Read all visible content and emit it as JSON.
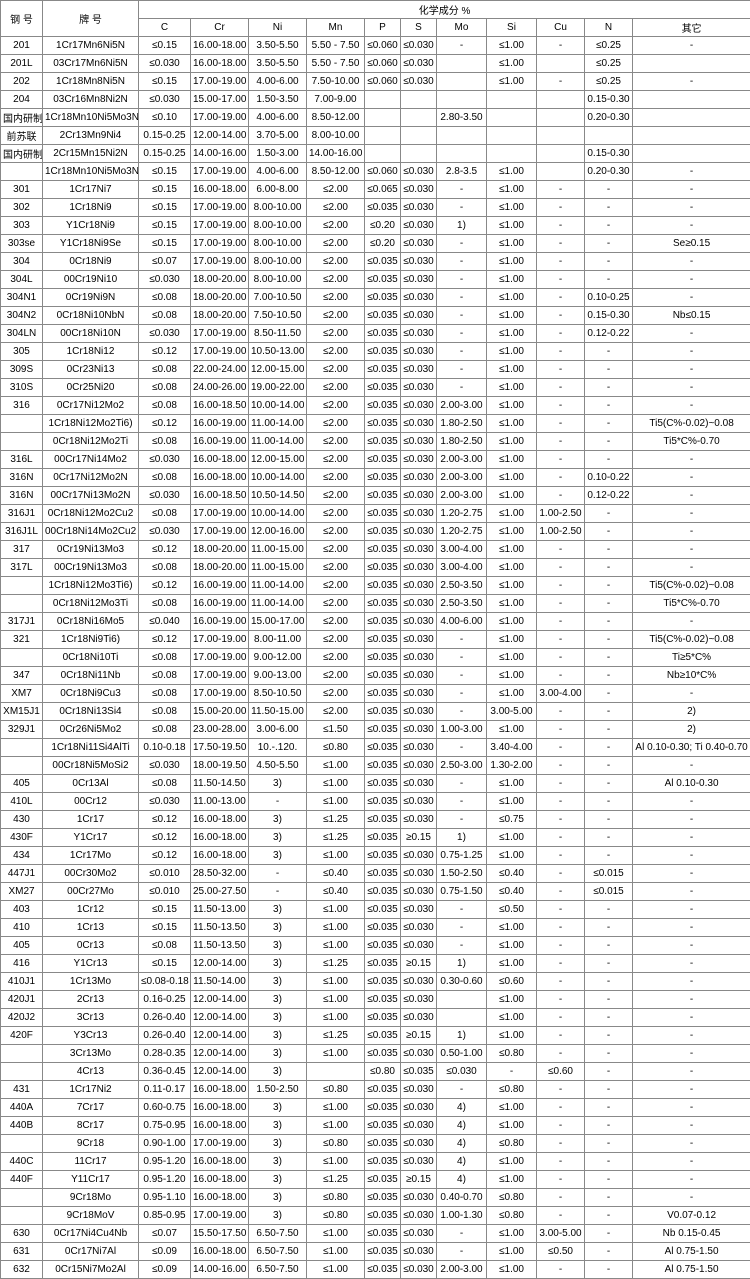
{
  "headers": {
    "steel": "钢 号",
    "grade": "牌 号",
    "composition": "化学成分 %",
    "cols": [
      "C",
      "Cr",
      "Ni",
      "Mn",
      "P",
      "S",
      "Mo",
      "Si",
      "Cu",
      "N",
      "其它"
    ]
  },
  "rows": [
    [
      "201",
      "1Cr17Mn6Ni5N",
      "≤0.15",
      "16.00-18.00",
      "3.50-5.50",
      "5.50 - 7.50",
      "≤0.060",
      "≤0.030",
      "-",
      "≤1.00",
      "-",
      "≤0.25",
      "-"
    ],
    [
      "201L",
      "03Cr17Mn6Ni5N",
      "≤0.030",
      "16.00-18.00",
      "3.50-5.50",
      "5.50 - 7.50",
      "≤0.060",
      "≤0.030",
      "",
      "≤1.00",
      "",
      "≤0.25",
      ""
    ],
    [
      "202",
      "1Cr18Mn8Ni5N",
      "≤0.15",
      "17.00-19.00",
      "4.00-6.00",
      "7.50-10.00",
      "≤0.060",
      "≤0.030",
      "",
      "≤1.00",
      "-",
      "≤0.25",
      "-"
    ],
    [
      "204",
      "03Cr16Mn8Ni2N",
      "≤0.030",
      "15.00-17.00",
      "1.50-3.50",
      "7.00-9.00",
      "",
      "",
      "",
      "",
      "",
      "0.15-0.30",
      ""
    ],
    [
      "国内研制",
      "1Cr18Mn10Ni5Mo3N",
      "≤0.10",
      "17.00-19.00",
      "4.00-6.00",
      "8.50-12.00",
      "",
      "",
      "2.80-3.50",
      "",
      "",
      "0.20-0.30",
      ""
    ],
    [
      "前苏联",
      "2Cr13Mn9Ni4",
      "0.15-0.25",
      "12.00-14.00",
      "3.70-5.00",
      "8.00-10.00",
      "",
      "",
      "",
      "",
      "",
      "",
      ""
    ],
    [
      "国内研制",
      "2Cr15Mn15Ni2N",
      "0.15-0.25",
      "14.00-16.00",
      "1.50-3.00",
      "14.00-16.00",
      "",
      "",
      "",
      "",
      "",
      "0.15-0.30",
      ""
    ],
    [
      "",
      "1Cr18Mn10Ni5Mo3N",
      "≤0.15",
      "17.00-19.00",
      "4.00-6.00",
      "8.50-12.00",
      "≤0.060",
      "≤0.030",
      "2.8-3.5",
      "≤1.00",
      "",
      "0.20-0.30",
      "-"
    ],
    [
      "301",
      "1Cr17Ni7",
      "≤0.15",
      "16.00-18.00",
      "6.00-8.00",
      "≤2.00",
      "≤0.065",
      "≤0.030",
      "-",
      "≤1.00",
      "-",
      "-",
      "-"
    ],
    [
      "302",
      "1Cr18Ni9",
      "≤0.15",
      "17.00-19.00",
      "8.00-10.00",
      "≤2.00",
      "≤0.035",
      "≤0.030",
      "-",
      "≤1.00",
      "-",
      "-",
      "-"
    ],
    [
      "303",
      "Y1Cr18Ni9",
      "≤0.15",
      "17.00-19.00",
      "8.00-10.00",
      "≤2.00",
      "≤0.20",
      "≤0.030",
      "1)",
      "≤1.00",
      "-",
      "-",
      "-"
    ],
    [
      "303se",
      "Y1Cr18Ni9Se",
      "≤0.15",
      "17.00-19.00",
      "8.00-10.00",
      "≤2.00",
      "≤0.20",
      "≤0.030",
      "-",
      "≤1.00",
      "-",
      "-",
      "Se≥0.15"
    ],
    [
      "304",
      "0Cr18Ni9",
      "≤0.07",
      "17.00-19.00",
      "8.00-10.00",
      "≤2.00",
      "≤0.035",
      "≤0.030",
      "-",
      "≤1.00",
      "-",
      "-",
      "-"
    ],
    [
      "304L",
      "00Cr19Ni10",
      "≤0.030",
      "18.00-20.00",
      "8.00-10.00",
      "≤2.00",
      "≤0.035",
      "≤0.030",
      "-",
      "≤1.00",
      "-",
      "-",
      "-"
    ],
    [
      "304N1",
      "0Cr19Ni9N",
      "≤0.08",
      "18.00-20.00",
      "7.00-10.50",
      "≤2.00",
      "≤0.035",
      "≤0.030",
      "-",
      "≤1.00",
      "-",
      "0.10-0.25",
      "-"
    ],
    [
      "304N2",
      "0Cr18Ni10NbN",
      "≤0.08",
      "18.00-20.00",
      "7.50-10.50",
      "≤2.00",
      "≤0.035",
      "≤0.030",
      "-",
      "≤1.00",
      "-",
      "0.15-0.30",
      "Nb≤0.15"
    ],
    [
      "304LN",
      "00Cr18Ni10N",
      "≤0.030",
      "17.00-19.00",
      "8.50-11.50",
      "≤2.00",
      "≤0.035",
      "≤0.030",
      "-",
      "≤1.00",
      "-",
      "0.12-0.22",
      "-"
    ],
    [
      "305",
      "1Cr18Ni12",
      "≤0.12",
      "17.00-19.00",
      "10.50-13.00",
      "≤2.00",
      "≤0.035",
      "≤0.030",
      "-",
      "≤1.00",
      "-",
      "-",
      "-"
    ],
    [
      "309S",
      "0Cr23Ni13",
      "≤0.08",
      "22.00-24.00",
      "12.00-15.00",
      "≤2.00",
      "≤0.035",
      "≤0.030",
      "-",
      "≤1.00",
      "-",
      "-",
      "-"
    ],
    [
      "310S",
      "0Cr25Ni20",
      "≤0.08",
      "24.00-26.00",
      "19.00-22.00",
      "≤2.00",
      "≤0.035",
      "≤0.030",
      "-",
      "≤1.00",
      "-",
      "-",
      "-"
    ],
    [
      "316",
      "0Cr17Ni12Mo2",
      "≤0.08",
      "16.00-18.50",
      "10.00-14.00",
      "≤2.00",
      "≤0.035",
      "≤0.030",
      "2.00-3.00",
      "≤1.00",
      "-",
      "-",
      "-"
    ],
    [
      "",
      "1Cr18Ni12Mo2Ti6)",
      "≤0.12",
      "16.00-19.00",
      "11.00-14.00",
      "≤2.00",
      "≤0.035",
      "≤0.030",
      "1.80-2.50",
      "≤1.00",
      "-",
      "-",
      "Ti5(C%-0.02)~0.08"
    ],
    [
      "",
      "0Cr18Ni12Mo2Ti",
      "≤0.08",
      "16.00-19.00",
      "11.00-14.00",
      "≤2.00",
      "≤0.035",
      "≤0.030",
      "1.80-2.50",
      "≤1.00",
      "-",
      "-",
      "Ti5*C%-0.70"
    ],
    [
      "316L",
      "00Cr17Ni14Mo2",
      "≤0.030",
      "16.00-18.00",
      "12.00-15.00",
      "≤2.00",
      "≤0.035",
      "≤0.030",
      "2.00-3.00",
      "≤1.00",
      "-",
      "-",
      "-"
    ],
    [
      "316N",
      "0Cr17Ni12Mo2N",
      "≤0.08",
      "16.00-18.00",
      "10.00-14.00",
      "≤2.00",
      "≤0.035",
      "≤0.030",
      "2.00-3.00",
      "≤1.00",
      "-",
      "0.10-0.22",
      "-"
    ],
    [
      "316N",
      "00Cr17Ni13Mo2N",
      "≤0.030",
      "16.00-18.50",
      "10.50-14.50",
      "≤2.00",
      "≤0.035",
      "≤0.030",
      "2.00-3.00",
      "≤1.00",
      "-",
      "0.12-0.22",
      "-"
    ],
    [
      "316J1",
      "0Cr18Ni12Mo2Cu2",
      "≤0.08",
      "17.00-19.00",
      "10.00-14.00",
      "≤2.00",
      "≤0.035",
      "≤0.030",
      "1.20-2.75",
      "≤1.00",
      "1.00-2.50",
      "-",
      "-"
    ],
    [
      "316J1L",
      "00Cr18Ni14Mo2Cu2",
      "≤0.030",
      "17.00-19.00",
      "12.00-16.00",
      "≤2.00",
      "≤0.035",
      "≤0.030",
      "1.20-2.75",
      "≤1.00",
      "1.00-2.50",
      "-",
      "-"
    ],
    [
      "317",
      "0Cr19Ni13Mo3",
      "≤0.12",
      "18.00-20.00",
      "11.00-15.00",
      "≤2.00",
      "≤0.035",
      "≤0.030",
      "3.00-4.00",
      "≤1.00",
      "-",
      "-",
      "-"
    ],
    [
      "317L",
      "00Cr19Ni13Mo3",
      "≤0.08",
      "18.00-20.00",
      "11.00-15.00",
      "≤2.00",
      "≤0.035",
      "≤0.030",
      "3.00-4.00",
      "≤1.00",
      "-",
      "-",
      "-"
    ],
    [
      "",
      "1Cr18Ni12Mo3Ti6)",
      "≤0.12",
      "16.00-19.00",
      "11.00-14.00",
      "≤2.00",
      "≤0.035",
      "≤0.030",
      "2.50-3.50",
      "≤1.00",
      "-",
      "-",
      "Ti5(C%-0.02)~0.08"
    ],
    [
      "",
      "0Cr18Ni12Mo3Ti",
      "≤0.08",
      "16.00-19.00",
      "11.00-14.00",
      "≤2.00",
      "≤0.035",
      "≤0.030",
      "2.50-3.50",
      "≤1.00",
      "-",
      "-",
      "Ti5*C%-0.70"
    ],
    [
      "317J1",
      "0Cr18Ni16Mo5",
      "≤0.040",
      "16.00-19.00",
      "15.00-17.00",
      "≤2.00",
      "≤0.035",
      "≤0.030",
      "4.00-6.00",
      "≤1.00",
      "-",
      "-",
      "-"
    ],
    [
      "321",
      "1Cr18Ni9Ti6)",
      "≤0.12",
      "17.00-19.00",
      "8.00-11.00",
      "≤2.00",
      "≤0.035",
      "≤0.030",
      "-",
      "≤1.00",
      "-",
      "-",
      "Ti5(C%-0.02)~0.08"
    ],
    [
      "",
      "0Cr18Ni10Ti",
      "≤0.08",
      "17.00-19.00",
      "9.00-12.00",
      "≤2.00",
      "≤0.035",
      "≤0.030",
      "-",
      "≤1.00",
      "-",
      "-",
      "Ti≥5*C%"
    ],
    [
      "347",
      "0Cr18Ni11Nb",
      "≤0.08",
      "17.00-19.00",
      "9.00-13.00",
      "≤2.00",
      "≤0.035",
      "≤0.030",
      "-",
      "≤1.00",
      "-",
      "-",
      "Nb≥10*C%"
    ],
    [
      "XM7",
      "0Cr18Ni9Cu3",
      "≤0.08",
      "17.00-19.00",
      "8.50-10.50",
      "≤2.00",
      "≤0.035",
      "≤0.030",
      "-",
      "≤1.00",
      "3.00-4.00",
      "-",
      "-"
    ],
    [
      "XM15J1",
      "0Cr18Ni13Si4",
      "≤0.08",
      "15.00-20.00",
      "11.50-15.00",
      "≤2.00",
      "≤0.035",
      "≤0.030",
      "-",
      "3.00-5.00",
      "-",
      "-",
      "2)"
    ],
    [
      "329J1",
      "0Cr26Ni5Mo2",
      "≤0.08",
      "23.00-28.00",
      "3.00-6.00",
      "≤1.50",
      "≤0.035",
      "≤0.030",
      "1.00-3.00",
      "≤1.00",
      "-",
      "-",
      "2)"
    ],
    [
      "",
      "1Cr18Ni11Si4AlTi",
      "0.10-0.18",
      "17.50-19.50",
      "10.-.120.",
      "≤0.80",
      "≤0.035",
      "≤0.030",
      "-",
      "3.40-4.00",
      "-",
      "-",
      "Al 0.10-0.30; Ti 0.40-0.70"
    ],
    [
      "",
      "00Cr18Ni5MoSi2",
      "≤0.030",
      "18.00-19.50",
      "4.50-5.50",
      "≤1.00",
      "≤0.035",
      "≤0.030",
      "2.50-3.00",
      "1.30-2.00",
      "-",
      "-",
      "-"
    ],
    [
      "405",
      "0Cr13Al",
      "≤0.08",
      "11.50-14.50",
      "3)",
      "≤1.00",
      "≤0.035",
      "≤0.030",
      "-",
      "≤1.00",
      "-",
      "-",
      "Al 0.10-0.30"
    ],
    [
      "410L",
      "00Cr12",
      "≤0.030",
      "11.00-13.00",
      "-",
      "≤1.00",
      "≤0.035",
      "≤0.030",
      "-",
      "≤1.00",
      "-",
      "-",
      "-"
    ],
    [
      "430",
      "1Cr17",
      "≤0.12",
      "16.00-18.00",
      "3)",
      "≤1.25",
      "≤0.035",
      "≤0.030",
      "-",
      "≤0.75",
      "-",
      "-",
      "-"
    ],
    [
      "430F",
      "Y1Cr17",
      "≤0.12",
      "16.00-18.00",
      "3)",
      "≤1.25",
      "≤0.035",
      "≥0.15",
      "1)",
      "≤1.00",
      "-",
      "-",
      "-"
    ],
    [
      "434",
      "1Cr17Mo",
      "≤0.12",
      "16.00-18.00",
      "3)",
      "≤1.00",
      "≤0.035",
      "≤0.030",
      "0.75-1.25",
      "≤1.00",
      "-",
      "-",
      "-"
    ],
    [
      "447J1",
      "00Cr30Mo2",
      "≤0.010",
      "28.50-32.00",
      "-",
      "≤0.40",
      "≤0.035",
      "≤0.030",
      "1.50-2.50",
      "≤0.40",
      "-",
      "≤0.015",
      "-"
    ],
    [
      "XM27",
      "00Cr27Mo",
      "≤0.010",
      "25.00-27.50",
      "-",
      "≤0.40",
      "≤0.035",
      "≤0.030",
      "0.75-1.50",
      "≤0.40",
      "-",
      "≤0.015",
      "-"
    ],
    [
      "403",
      "1Cr12",
      "≤0.15",
      "11.50-13.00",
      "3)",
      "≤1.00",
      "≤0.035",
      "≤0.030",
      "-",
      "≤0.50",
      "-",
      "-",
      "-"
    ],
    [
      "410",
      "1Cr13",
      "≤0.15",
      "11.50-13.50",
      "3)",
      "≤1.00",
      "≤0.035",
      "≤0.030",
      "-",
      "≤1.00",
      "-",
      "-",
      "-"
    ],
    [
      "405",
      "0Cr13",
      "≤0.08",
      "11.50-13.50",
      "3)",
      "≤1.00",
      "≤0.035",
      "≤0.030",
      "-",
      "≤1.00",
      "-",
      "-",
      "-"
    ],
    [
      "416",
      "Y1Cr13",
      "≤0.15",
      "12.00-14.00",
      "3)",
      "≤1.25",
      "≤0.035",
      "≥0.15",
      "1)",
      "≤1.00",
      "-",
      "-",
      "-"
    ],
    [
      "410J1",
      "1Cr13Mo",
      "≤0.08-0.18",
      "11.50-14.00",
      "3)",
      "≤1.00",
      "≤0.035",
      "≤0.030",
      "0.30-0.60",
      "≤0.60",
      "-",
      "-",
      "-"
    ],
    [
      "420J1",
      "2Cr13",
      "0.16-0.25",
      "12.00-14.00",
      "3)",
      "≤1.00",
      "≤0.035",
      "≤0.030",
      "",
      "≤1.00",
      "-",
      "-",
      "-"
    ],
    [
      "420J2",
      "3Cr13",
      "0.26-0.40",
      "12.00-14.00",
      "3)",
      "≤1.00",
      "≤0.035",
      "≤0.030",
      "",
      "≤1.00",
      "-",
      "-",
      "-"
    ],
    [
      "420F",
      "Y3Cr13",
      "0.26-0.40",
      "12.00-14.00",
      "3)",
      "≤1.25",
      "≤0.035",
      "≥0.15",
      "1)",
      "≤1.00",
      "-",
      "-",
      "-"
    ],
    [
      "",
      "3Cr13Mo",
      "0.28-0.35",
      "12.00-14.00",
      "3)",
      "≤1.00",
      "≤0.035",
      "≤0.030",
      "0.50-1.00",
      "≤0.80",
      "-",
      "-",
      "-"
    ],
    [
      "",
      "4Cr13",
      "0.36-0.45",
      "12.00-14.00",
      "3)",
      "",
      "≤0.80",
      "≤0.035",
      "≤0.030",
      "-",
      "≤0.60",
      "-",
      "-"
    ],
    [
      "431",
      "1Cr17Ni2",
      "0.11-0.17",
      "16.00-18.00",
      "1.50-2.50",
      "≤0.80",
      "≤0.035",
      "≤0.030",
      "-",
      "≤0.80",
      "-",
      "-",
      "-"
    ],
    [
      "440A",
      "7Cr17",
      "0.60-0.75",
      "16.00-18.00",
      "3)",
      "≤1.00",
      "≤0.035",
      "≤0.030",
      "4)",
      "≤1.00",
      "-",
      "-",
      "-"
    ],
    [
      "440B",
      "8Cr17",
      "0.75-0.95",
      "16.00-18.00",
      "3)",
      "≤1.00",
      "≤0.035",
      "≤0.030",
      "4)",
      "≤1.00",
      "-",
      "-",
      "-"
    ],
    [
      "",
      "9Cr18",
      "0.90-1.00",
      "17.00-19.00",
      "3)",
      "≤0.80",
      "≤0.035",
      "≤0.030",
      "4)",
      "≤0.80",
      "-",
      "-",
      "-"
    ],
    [
      "440C",
      "11Cr17",
      "0.95-1.20",
      "16.00-18.00",
      "3)",
      "≤1.00",
      "≤0.035",
      "≤0.030",
      "4)",
      "≤1.00",
      "-",
      "-",
      "-"
    ],
    [
      "440F",
      "Y11Cr17",
      "0.95-1.20",
      "16.00-18.00",
      "3)",
      "≤1.25",
      "≤0.035",
      "≥0.15",
      "4)",
      "≤1.00",
      "-",
      "-",
      "-"
    ],
    [
      "",
      "9Cr18Mo",
      "0.95-1.10",
      "16.00-18.00",
      "3)",
      "≤0.80",
      "≤0.035",
      "≤0.030",
      "0.40-0.70",
      "≤0.80",
      "-",
      "-",
      "-"
    ],
    [
      "",
      "9Cr18MoV",
      "0.85-0.95",
      "17.00-19.00",
      "3)",
      "≤0.80",
      "≤0.035",
      "≤0.030",
      "1.00-1.30",
      "≤0.80",
      "-",
      "-",
      "V0.07-0.12"
    ],
    [
      "630",
      "0Cr17Ni4Cu4Nb",
      "≤0.07",
      "15.50-17.50",
      "6.50-7.50",
      "≤1.00",
      "≤0.035",
      "≤0.030",
      "-",
      "≤1.00",
      "3.00-5.00",
      "-",
      "Nb 0.15-0.45"
    ],
    [
      "631",
      "0Cr17Ni7Al",
      "≤0.09",
      "16.00-18.00",
      "6.50-7.50",
      "≤1.00",
      "≤0.035",
      "≤0.030",
      "-",
      "≤1.00",
      "≤0.50",
      "-",
      "Al 0.75-1.50"
    ],
    [
      "632",
      "0Cr15Ni7Mo2Al",
      "≤0.09",
      "14.00-16.00",
      "6.50-7.50",
      "≤1.00",
      "≤0.035",
      "≤0.030",
      "2.00-3.00",
      "≤1.00",
      "-",
      "-",
      "Al 0.75-1.50"
    ]
  ]
}
